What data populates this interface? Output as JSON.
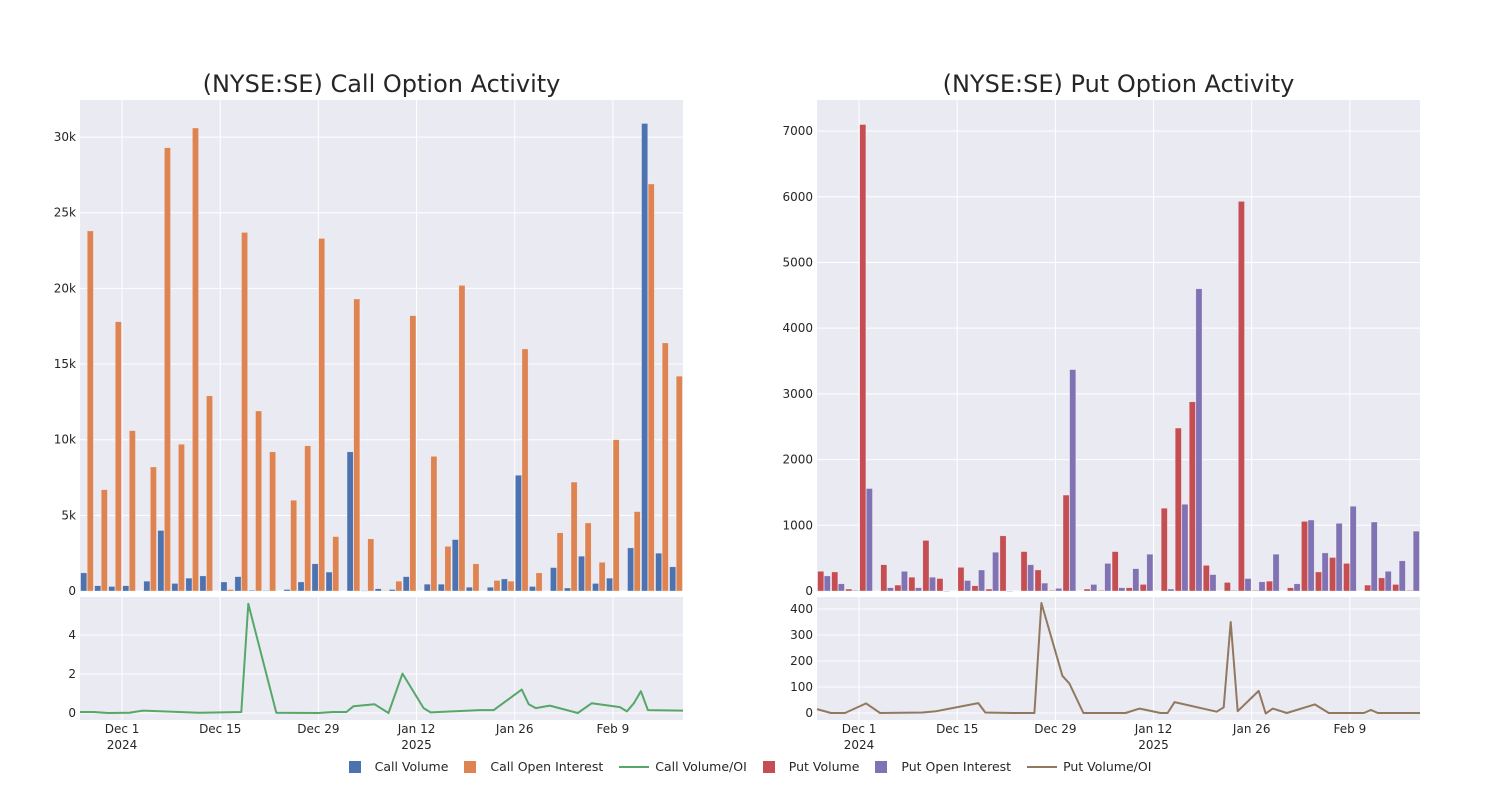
{
  "chart_data": [
    {
      "type": "bar",
      "title": "(NYSE:SE) Call Option Activity",
      "x_range": [
        "2024-11-25",
        "2025-02-19"
      ],
      "x_ticks": [
        {
          "date": "2024-12-01",
          "label": "Dec 1",
          "sublabel": "2024"
        },
        {
          "date": "2024-12-15",
          "label": "Dec 15",
          "sublabel": ""
        },
        {
          "date": "2024-12-29",
          "label": "Dec 29",
          "sublabel": ""
        },
        {
          "date": "2025-01-12",
          "label": "Jan 12",
          "sublabel": "2025"
        },
        {
          "date": "2025-01-26",
          "label": "Jan 26",
          "sublabel": ""
        },
        {
          "date": "2025-02-09",
          "label": "Feb 9",
          "sublabel": ""
        }
      ],
      "upper": {
        "ylim": [
          0,
          32450
        ],
        "y_ticks": [
          {
            "v": 0,
            "label": "0"
          },
          {
            "v": 5000,
            "label": "5k"
          },
          {
            "v": 10000,
            "label": "10k"
          },
          {
            "v": 15000,
            "label": "15k"
          },
          {
            "v": 20000,
            "label": "20k"
          },
          {
            "v": 25000,
            "label": "25k"
          },
          {
            "v": 30000,
            "label": "30k"
          }
        ],
        "dates": [
          "2024-11-26",
          "2024-11-28",
          "2024-11-30",
          "2024-12-02",
          "2024-12-05",
          "2024-12-07",
          "2024-12-09",
          "2024-12-11",
          "2024-12-13",
          "2024-12-16",
          "2024-12-18",
          "2024-12-20",
          "2024-12-22",
          "2024-12-25",
          "2024-12-27",
          "2024-12-29",
          "2024-12-31",
          "2025-01-03",
          "2025-01-05",
          "2025-01-07",
          "2025-01-09",
          "2025-01-11",
          "2025-01-14",
          "2025-01-16",
          "2025-01-18",
          "2025-01-20",
          "2025-01-23",
          "2025-01-25",
          "2025-01-27",
          "2025-01-29",
          "2025-02-01",
          "2025-02-03",
          "2025-02-05",
          "2025-02-07",
          "2025-02-09",
          "2025-02-12",
          "2025-02-14",
          "2025-02-16",
          "2025-02-18"
        ],
        "series": [
          {
            "name": "Call Volume",
            "color": "#4c72b0",
            "values": [
              1200,
              350,
              300,
              350,
              650,
              4000,
              500,
              850,
              1000,
              600,
              950,
              50,
              30,
              100,
              600,
              1800,
              1250,
              9200,
              20,
              150,
              100,
              950,
              450,
              450,
              3400,
              250,
              250,
              800,
              7650,
              300,
              1550,
              200,
              2300,
              500,
              850,
              2850,
              30900,
              2500,
              1600
            ]
          },
          {
            "name": "Call Open Interest",
            "color": "#dd8452",
            "values": [
              23800,
              6700,
              17800,
              10600,
              8200,
              29300,
              9700,
              30600,
              12900,
              100,
              23700,
              11900,
              9200,
              6000,
              9600,
              23300,
              3600,
              19300,
              3450,
              30,
              650,
              18200,
              8900,
              2950,
              20200,
              1800,
              700,
              650,
              16000,
              1200,
              3850,
              7200,
              4500,
              1900,
              10000,
              5250,
              26900,
              16400,
              14200
            ]
          }
        ]
      },
      "lower": {
        "ylim": [
          -0.36,
          5.95
        ],
        "y_ticks": [
          {
            "v": 0,
            "label": "0"
          },
          {
            "v": 2,
            "label": "2"
          },
          {
            "v": 4,
            "label": "4"
          }
        ],
        "series": {
          "name": "Call Volume/OI",
          "color": "#55a868",
          "points": [
            [
              "2024-11-25",
              0.05
            ],
            [
              "2024-11-27",
              0.05
            ],
            [
              "2024-11-29",
              0.0
            ],
            [
              "2024-12-02",
              0.01
            ],
            [
              "2024-12-04",
              0.12
            ],
            [
              "2024-12-12",
              0.01
            ],
            [
              "2024-12-15",
              0.03
            ],
            [
              "2024-12-18",
              0.05
            ],
            [
              "2024-12-19",
              5.6
            ],
            [
              "2024-12-23",
              0.01
            ],
            [
              "2024-12-29",
              0.0
            ],
            [
              "2024-12-31",
              0.05
            ],
            [
              "2025-01-02",
              0.05
            ],
            [
              "2025-01-03",
              0.35
            ],
            [
              "2025-01-06",
              0.45
            ],
            [
              "2025-01-08",
              0.0
            ],
            [
              "2025-01-10",
              2.02
            ],
            [
              "2025-01-13",
              0.25
            ],
            [
              "2025-01-14",
              0.03
            ],
            [
              "2025-01-21",
              0.15
            ],
            [
              "2025-01-23",
              0.15
            ],
            [
              "2025-01-27",
              1.2
            ],
            [
              "2025-01-28",
              0.45
            ],
            [
              "2025-01-29",
              0.25
            ],
            [
              "2025-01-31",
              0.38
            ],
            [
              "2025-02-04",
              0.0
            ],
            [
              "2025-02-06",
              0.5
            ],
            [
              "2025-02-10",
              0.3
            ],
            [
              "2025-02-11",
              0.08
            ],
            [
              "2025-02-12",
              0.5
            ],
            [
              "2025-02-13",
              1.12
            ],
            [
              "2025-02-14",
              0.15
            ],
            [
              "2025-02-19",
              0.12
            ]
          ]
        }
      }
    },
    {
      "type": "bar",
      "title": "(NYSE:SE) Put Option Activity",
      "x_range": [
        "2024-11-25",
        "2025-02-19"
      ],
      "x_ticks": [
        {
          "date": "2024-12-01",
          "label": "Dec 1",
          "sublabel": "2024"
        },
        {
          "date": "2024-12-15",
          "label": "Dec 15",
          "sublabel": ""
        },
        {
          "date": "2024-12-29",
          "label": "Dec 29",
          "sublabel": ""
        },
        {
          "date": "2025-01-12",
          "label": "Jan 12",
          "sublabel": "2025"
        },
        {
          "date": "2025-01-26",
          "label": "Jan 26",
          "sublabel": ""
        },
        {
          "date": "2025-02-09",
          "label": "Feb 9",
          "sublabel": ""
        }
      ],
      "upper": {
        "ylim": [
          0,
          7473
        ],
        "y_ticks": [
          {
            "v": 0,
            "label": "0"
          },
          {
            "v": 1000,
            "label": "1000"
          },
          {
            "v": 2000,
            "label": "2000"
          },
          {
            "v": 3000,
            "label": "3000"
          },
          {
            "v": 4000,
            "label": "4000"
          },
          {
            "v": 5000,
            "label": "5000"
          },
          {
            "v": 6000,
            "label": "6000"
          },
          {
            "v": 7000,
            "label": "7000"
          }
        ],
        "dates": [
          "2024-11-26",
          "2024-11-28",
          "2024-11-30",
          "2024-12-02",
          "2024-12-05",
          "2024-12-07",
          "2024-12-09",
          "2024-12-11",
          "2024-12-13",
          "2024-12-16",
          "2024-12-18",
          "2024-12-20",
          "2024-12-22",
          "2024-12-25",
          "2024-12-27",
          "2024-12-29",
          "2024-12-31",
          "2025-01-03",
          "2025-01-05",
          "2025-01-07",
          "2025-01-09",
          "2025-01-11",
          "2025-01-14",
          "2025-01-16",
          "2025-01-18",
          "2025-01-20",
          "2025-01-23",
          "2025-01-25",
          "2025-01-27",
          "2025-01-29",
          "2025-02-01",
          "2025-02-03",
          "2025-02-05",
          "2025-02-07",
          "2025-02-09",
          "2025-02-12",
          "2025-02-14",
          "2025-02-16",
          "2025-02-18"
        ],
        "series": [
          {
            "name": "Put Volume",
            "color": "#c44e52",
            "values": [
              300,
              290,
              30,
              7100,
              400,
              90,
              210,
              770,
              190,
              360,
              80,
              30,
              840,
              600,
              320,
              10,
              1460,
              30,
              10,
              600,
              50,
              100,
              1260,
              2480,
              2880,
              390,
              130,
              5930,
              10,
              150,
              50,
              1060,
              290,
              510,
              420,
              90,
              200,
              100,
              10
            ]
          },
          {
            "name": "Put Open Interest",
            "color": "#8172b3",
            "values": [
              230,
              110,
              10,
              1560,
              50,
              300,
              50,
              210,
              0,
              160,
              320,
              590,
              0,
              400,
              120,
              40,
              3370,
              100,
              420,
              50,
              340,
              560,
              30,
              1320,
              4600,
              250,
              10,
              190,
              140,
              560,
              110,
              1080,
              580,
              1030,
              1290,
              1050,
              300,
              460,
              910
            ]
          }
        ]
      },
      "lower": {
        "ylim": [
          -27,
          446
        ],
        "y_ticks": [
          {
            "v": 0,
            "label": "0"
          },
          {
            "v": 100,
            "label": "100"
          },
          {
            "v": 200,
            "label": "200"
          },
          {
            "v": 300,
            "label": "300"
          },
          {
            "v": 400,
            "label": "400"
          }
        ],
        "series": {
          "name": "Put Volume/OI",
          "color": "#937860",
          "points": [
            [
              "2024-11-25",
              15
            ],
            [
              "2024-11-27",
              0
            ],
            [
              "2024-11-29",
              0
            ],
            [
              "2024-12-02",
              37
            ],
            [
              "2024-12-04",
              0
            ],
            [
              "2024-12-10",
              2
            ],
            [
              "2024-12-12",
              7
            ],
            [
              "2024-12-18",
              38
            ],
            [
              "2024-12-19",
              2
            ],
            [
              "2024-12-23",
              0
            ],
            [
              "2024-12-26",
              0
            ],
            [
              "2024-12-27",
              423
            ],
            [
              "2024-12-30",
              143
            ],
            [
              "2024-12-31",
              113
            ],
            [
              "2025-01-02",
              0
            ],
            [
              "2025-01-08",
              0
            ],
            [
              "2025-01-10",
              17
            ],
            [
              "2025-01-13",
              0
            ],
            [
              "2025-01-14",
              0
            ],
            [
              "2025-01-15",
              42
            ],
            [
              "2025-01-21",
              5
            ],
            [
              "2025-01-22",
              22
            ],
            [
              "2025-01-23",
              350
            ],
            [
              "2025-01-24",
              7
            ],
            [
              "2025-01-27",
              85
            ],
            [
              "2025-01-28",
              -2
            ],
            [
              "2025-01-29",
              17
            ],
            [
              "2025-01-31",
              0
            ],
            [
              "2025-02-04",
              33
            ],
            [
              "2025-02-06",
              0
            ],
            [
              "2025-02-11",
              0
            ],
            [
              "2025-02-12",
              12
            ],
            [
              "2025-02-13",
              0
            ],
            [
              "2025-02-19",
              0
            ]
          ]
        }
      }
    }
  ],
  "legend": [
    {
      "label": "Call Volume",
      "kind": "box",
      "color": "#4c72b0"
    },
    {
      "label": "Call Open Interest",
      "kind": "box",
      "color": "#dd8452"
    },
    {
      "label": "Call Volume/OI",
      "kind": "line",
      "color": "#55a868"
    },
    {
      "label": "Put Volume",
      "kind": "box",
      "color": "#c44e52"
    },
    {
      "label": "Put Open Interest",
      "kind": "box",
      "color": "#8172b3"
    },
    {
      "label": "Put Volume/OI",
      "kind": "line",
      "color": "#937860"
    }
  ]
}
